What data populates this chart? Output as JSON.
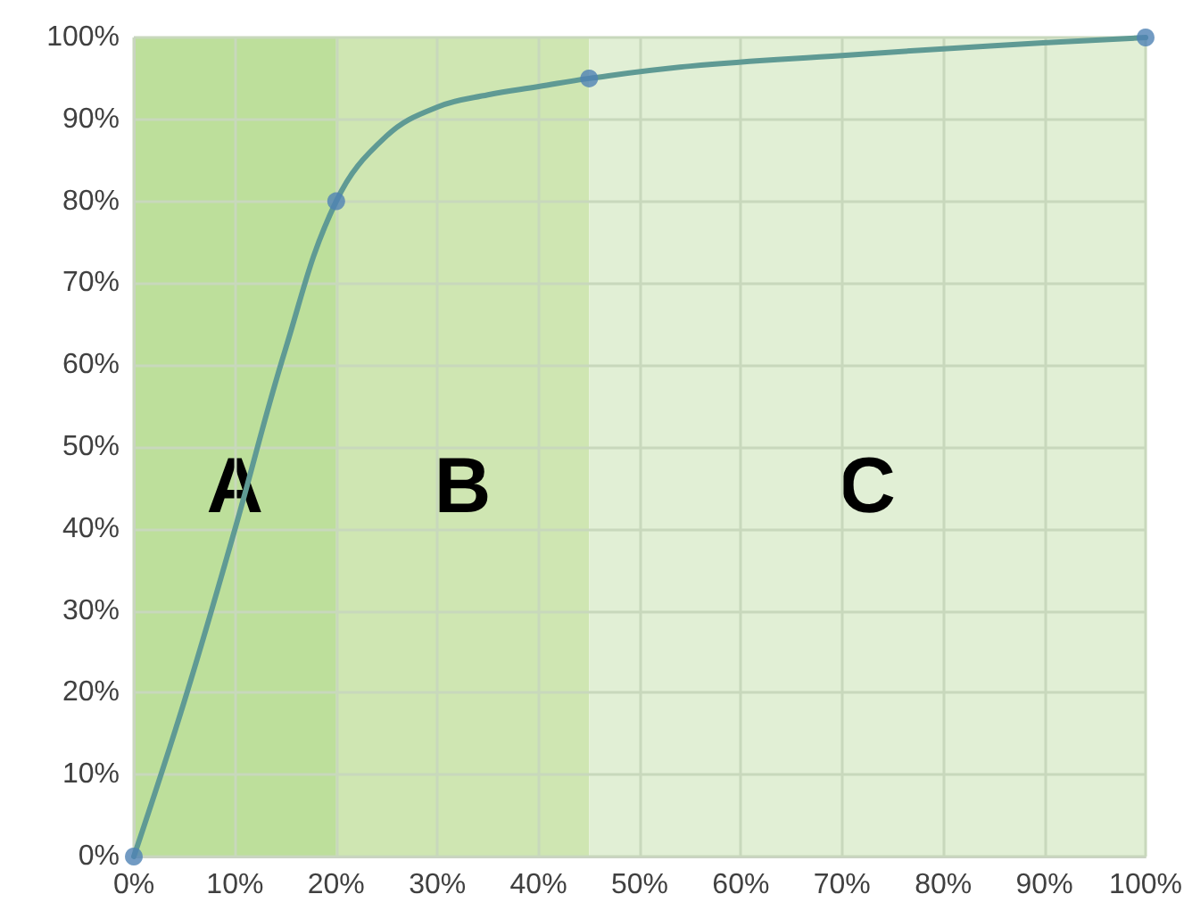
{
  "chart_data": {
    "type": "line",
    "x": [
      0,
      5,
      10,
      15,
      20,
      25,
      30,
      35,
      40,
      45,
      55,
      70,
      85,
      100
    ],
    "series": [
      {
        "color": "#5f9a94",
        "marker": "none",
        "values": [
          0,
          19,
          40,
          62,
          80,
          88,
          91.5,
          93,
          94,
          95,
          96.5,
          97.8,
          99,
          100
        ]
      },
      {
        "type": "scatter",
        "color": "#4f82b4",
        "marker": "circle",
        "x": [
          0,
          20,
          45,
          100
        ],
        "values": [
          0,
          80,
          95,
          100
        ]
      }
    ],
    "xlim": [
      0,
      100
    ],
    "ylim": [
      0,
      100
    ],
    "xticks": [
      {
        "value": 0,
        "label": "0%"
      },
      {
        "value": 10,
        "label": "10%"
      },
      {
        "value": 20,
        "label": "20%"
      },
      {
        "value": 30,
        "label": "30%"
      },
      {
        "value": 40,
        "label": "40%"
      },
      {
        "value": 50,
        "label": "50%"
      },
      {
        "value": 60,
        "label": "60%"
      },
      {
        "value": 70,
        "label": "70%"
      },
      {
        "value": 80,
        "label": "80%"
      },
      {
        "value": 90,
        "label": "90%"
      },
      {
        "value": 100,
        "label": "100%"
      }
    ],
    "yticks": [
      {
        "value": 0,
        "label": "0%"
      },
      {
        "value": 10,
        "label": "10%"
      },
      {
        "value": 20,
        "label": "20%"
      },
      {
        "value": 30,
        "label": "30%"
      },
      {
        "value": 40,
        "label": "40%"
      },
      {
        "value": 50,
        "label": "50%"
      },
      {
        "value": 60,
        "label": "60%"
      },
      {
        "value": 70,
        "label": "70%"
      },
      {
        "value": 80,
        "label": "80%"
      },
      {
        "value": 90,
        "label": "90%"
      },
      {
        "value": 100,
        "label": "100%"
      }
    ],
    "bands": [
      {
        "axis": "x",
        "from": 0,
        "to": 20,
        "label": "A",
        "color": "#bddf9b"
      },
      {
        "axis": "x",
        "from": 20,
        "to": 45,
        "label": "B",
        "color": "#cfe6b2"
      },
      {
        "axis": "x",
        "from": 45,
        "to": 100,
        "label": "C",
        "color": "#e1efd5"
      }
    ],
    "grid": true,
    "line_style": "solid"
  }
}
